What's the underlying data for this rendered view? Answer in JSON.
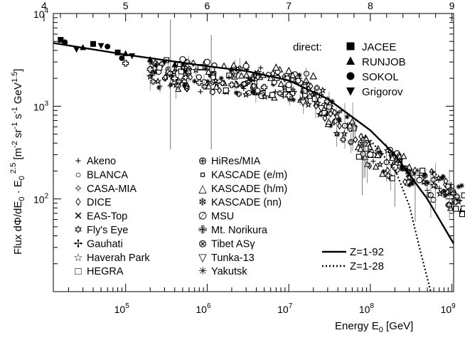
{
  "chart_data": {
    "type": "scatter",
    "title": "",
    "xlabel": "Energy E0 [GeV]",
    "xlabel_parts": {
      "main": "Energy E",
      "sub": "0",
      "unit": " [GeV]"
    },
    "ylabel": "Flux dΦ/dE0 · E0^2.5 [m^-2 sr^-1 s^-1 GeV^1.5]",
    "ylabel_parts": {
      "p1": "Flux dΦ/dE",
      "s1": "0",
      "p2": " · E",
      "s2": "0",
      "sup1": "2.5",
      "p3": " [m",
      "sup2": "-2",
      "p4": " sr",
      "sup3": "-1",
      "p5": " s",
      "sup4": "-1",
      "p6": " GeV",
      "sup5": "1.5",
      "p7": "]"
    },
    "x_scale": "log",
    "y_scale": "log",
    "xlim": [
      13000,
      1050000000
    ],
    "ylim": [
      10,
      10000
    ],
    "x_ticks": [
      {
        "base": "10",
        "exp": "5",
        "value": 100000
      },
      {
        "base": "10",
        "exp": "6",
        "value": 1000000
      },
      {
        "base": "10",
        "exp": "7",
        "value": 10000000
      },
      {
        "base": "10",
        "exp": "8",
        "value": 100000000
      },
      {
        "base": "10",
        "exp": "9",
        "value": 1000000000
      }
    ],
    "y_ticks": [
      {
        "base": "10",
        "exp": "2",
        "value": 100
      },
      {
        "base": "10",
        "exp": "3",
        "value": 1000
      },
      {
        "base": "10",
        "exp": "4",
        "value": 10000
      }
    ],
    "top_axis_ticks": [
      {
        "label": "4",
        "value": 4
      },
      {
        "label": "5",
        "value": 5
      },
      {
        "label": "6",
        "value": 6
      },
      {
        "label": "7",
        "value": 7
      },
      {
        "label": "8",
        "value": 8
      },
      {
        "label": "9",
        "value": 9
      }
    ],
    "direct_label": "direct:",
    "direct_legend": [
      {
        "marker": "square",
        "name": "JACEE"
      },
      {
        "marker": "triangle",
        "name": "RUNJOB"
      },
      {
        "marker": "circle",
        "name": "SOKOL"
      },
      {
        "marker": "triangle-down",
        "name": "Grigorov"
      }
    ],
    "legend": [
      {
        "symbol": "+",
        "name": "Akeno"
      },
      {
        "symbol": "○",
        "name": "BLANCA"
      },
      {
        "symbol": "✧",
        "name": "CASA-MIA"
      },
      {
        "symbol": "◊",
        "name": "DICE"
      },
      {
        "symbol": "✕",
        "name": "EAS-Top"
      },
      {
        "symbol": "✡",
        "name": "Fly's Eye"
      },
      {
        "symbol": "✢",
        "name": "Gauhati"
      },
      {
        "symbol": "☆",
        "name": "Haverah Park"
      },
      {
        "symbol": "□",
        "name": "HEGRA"
      },
      {
        "symbol": "⊕",
        "name": "HiRes/MIA"
      },
      {
        "symbol": "¤",
        "name": "KASCADE (e/m)"
      },
      {
        "symbol": "△",
        "name": "KASCADE (h/m)"
      },
      {
        "symbol": "❄",
        "name": "KASCADE (nn)"
      },
      {
        "symbol": "∅",
        "name": "MSU"
      },
      {
        "symbol": "✙",
        "name": "Mt. Norikura"
      },
      {
        "symbol": "⊗",
        "name": "Tibet ASγ"
      },
      {
        "symbol": "▽",
        "name": "Tunka-13"
      },
      {
        "symbol": "✳",
        "name": "Yakutsk"
      }
    ],
    "model_legend": [
      {
        "name": "Z=1-92",
        "style": "solid"
      },
      {
        "name": "Z=1-28",
        "style": "dotted"
      }
    ],
    "series": [
      {
        "name": "JACEE",
        "marker": "square",
        "x": [
          16000,
          40000,
          80000
        ],
        "y": [
          5200,
          4700,
          3800
        ]
      },
      {
        "name": "RUNJOB",
        "marker": "triangle",
        "x": [
          30000,
          100000,
          200000,
          400000
        ],
        "y": [
          4300,
          3700,
          3200,
          2800
        ]
      },
      {
        "name": "SOKOL",
        "marker": "circle",
        "x": [
          18000,
          60000,
          90000
        ],
        "y": [
          4900,
          4400,
          3300
        ]
      },
      {
        "name": "Grigorov",
        "marker": "triangle-down",
        "x": [
          25000,
          50000,
          120000,
          300000
        ],
        "y": [
          4100,
          4500,
          3500,
          3000
        ]
      },
      {
        "name": "Mt. Norikura",
        "marker": "cross",
        "x": [
          100000,
          200000,
          400000,
          800000,
          2000000,
          5000000,
          10000000
        ],
        "y": [
          2900,
          2500,
          2000,
          1800,
          1700,
          1600,
          1300
        ]
      },
      {
        "name": "KASCADE (h/m)",
        "marker": "open-triangle",
        "x": [
          3000000,
          7000000,
          10000000,
          20000000
        ],
        "y": [
          2800,
          2600,
          2400,
          2100
        ]
      },
      {
        "name": "Tunka-13",
        "marker": "open-triangle-down",
        "x": [
          15000000,
          25000000
        ],
        "y": [
          1100,
          950
        ]
      },
      {
        "name": "BLANCA",
        "marker": "open-circle",
        "x": [
          500000,
          1000000,
          3000000,
          10000000
        ],
        "y": [
          3200,
          3000,
          2700,
          1700
        ]
      },
      {
        "name": "HiRes/MIA",
        "marker": "open-circle",
        "x": [
          100000000,
          200000000,
          400000000
        ],
        "y": [
          300,
          220,
          160
        ]
      },
      {
        "name": "Yakutsk",
        "marker": "star",
        "x": [
          300000000,
          500000000,
          800000000
        ],
        "y": [
          190,
          150,
          120
        ]
      },
      {
        "name": "Akeno",
        "marker": "plus",
        "x": [
          200000000,
          400000000,
          700000000
        ],
        "y": [
          250,
          180,
          130
        ]
      },
      {
        "name": "Haverah Park",
        "marker": "open-star",
        "x": [
          300000000,
          600000000
        ],
        "y": [
          170,
          140
        ]
      }
    ],
    "models": [
      {
        "name": "Z=1-92",
        "style": "solid",
        "x": [
          13000,
          100000,
          1000000,
          3000000,
          10000000,
          30000000,
          100000000,
          200000000,
          500000000,
          1050000000
        ],
        "y": [
          4800,
          3600,
          2700,
          2400,
          1900,
          1200,
          550,
          300,
          100,
          33
        ]
      },
      {
        "name": "Z=1-28",
        "style": "dotted",
        "x": [
          100000000,
          200000000,
          300000000,
          400000000,
          550000000
        ],
        "y": [
          430,
          210,
          85,
          30,
          10
        ]
      }
    ]
  }
}
